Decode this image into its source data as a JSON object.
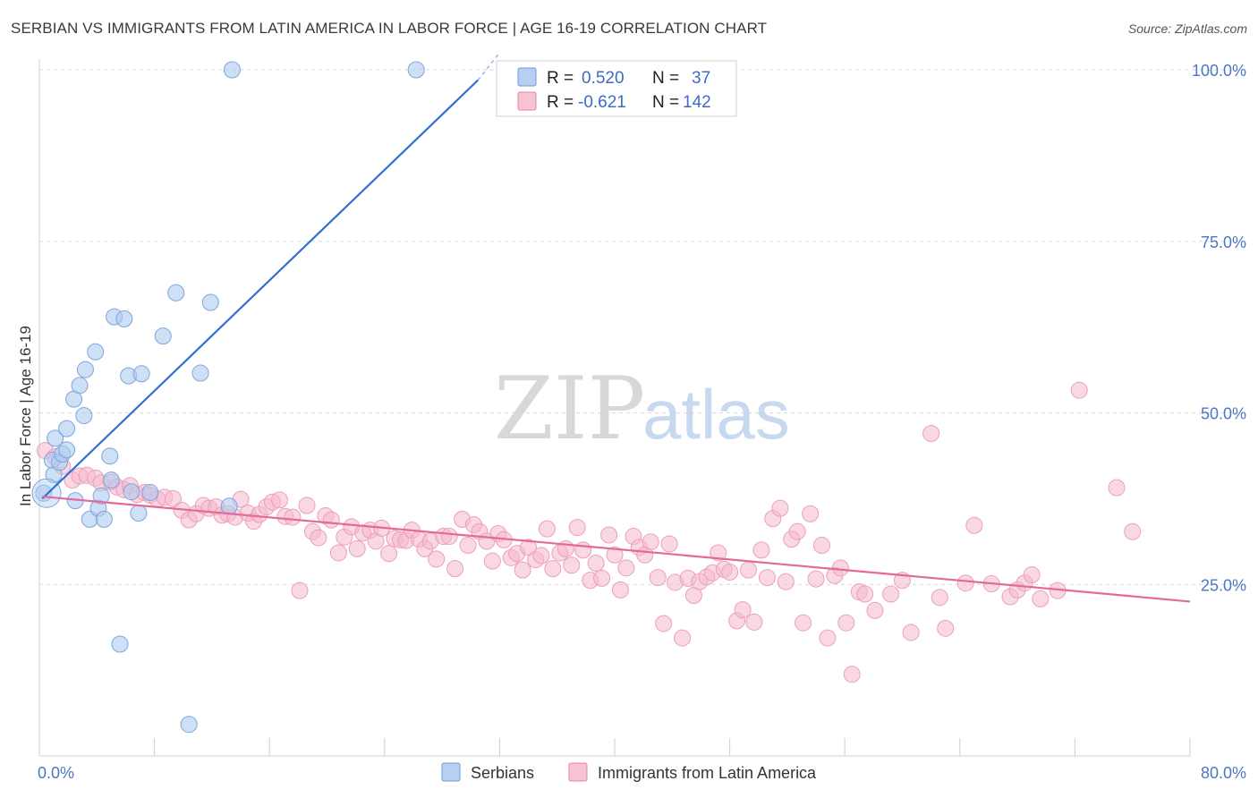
{
  "title": "SERBIAN VS IMMIGRANTS FROM LATIN AMERICA IN LABOR FORCE | AGE 16-19 CORRELATION CHART",
  "source": "Source: ZipAtlas.com",
  "watermark": {
    "zip": "ZIP",
    "atlas": "atlas"
  },
  "colors": {
    "serbians": "#5b8fd6",
    "serbians_fill": "#aecbf0",
    "latin": "#e0608e",
    "latin_fill": "#f5b8cc",
    "tick_text": "#4a78c2",
    "grid": "#d9d9d9"
  },
  "legend": {
    "row1": {
      "r_label": "R = ",
      "r_value": "0.520",
      "n_label": "N = ",
      "n_value": "37"
    },
    "row2": {
      "r_label": "R = ",
      "r_value": "-0.621",
      "n_label": "N = ",
      "n_value": "142"
    }
  },
  "bottom_legend": [
    "Serbians",
    "Immigrants from Latin America"
  ],
  "chart_data": {
    "type": "scatter",
    "title": "SERBIAN VS IMMIGRANTS FROM LATIN AMERICA IN LABOR FORCE | AGE 16-19 CORRELATION CHART",
    "xlabel": "",
    "ylabel": "In Labor Force | Age 16-19",
    "xlim": [
      0,
      80
    ],
    "ylim": [
      0,
      104
    ],
    "x_tick_labels": [
      "0.0%",
      "80.0%"
    ],
    "y_ticks": [
      25,
      50,
      75,
      100
    ],
    "y_tick_labels": [
      "25.0%",
      "50.0%",
      "75.0%",
      "100.0%"
    ],
    "grid": true,
    "legend_position": "top-center",
    "series": [
      {
        "name": "Serbians",
        "R": 0.52,
        "N": 37,
        "trend": {
          "x": [
            0.2,
            30.5
          ],
          "y": [
            37.5,
            98.5
          ],
          "dashed_to": [
            32.0,
            102.5
          ]
        },
        "points": [
          [
            0.3,
            38.3
          ],
          [
            0.9,
            43.1
          ],
          [
            1.0,
            41.0
          ],
          [
            1.1,
            46.3
          ],
          [
            1.4,
            42.8
          ],
          [
            1.6,
            44.0
          ],
          [
            1.9,
            47.7
          ],
          [
            1.9,
            44.6
          ],
          [
            2.4,
            52.0
          ],
          [
            2.5,
            37.2
          ],
          [
            2.8,
            54.0
          ],
          [
            3.1,
            49.6
          ],
          [
            3.2,
            56.3
          ],
          [
            3.5,
            34.5
          ],
          [
            3.9,
            58.9
          ],
          [
            4.1,
            36.1
          ],
          [
            4.3,
            37.9
          ],
          [
            4.5,
            34.5
          ],
          [
            4.9,
            43.7
          ],
          [
            5.0,
            40.2
          ],
          [
            5.2,
            64.0
          ],
          [
            5.6,
            16.3
          ],
          [
            5.9,
            63.7
          ],
          [
            6.2,
            55.4
          ],
          [
            6.4,
            38.5
          ],
          [
            6.9,
            35.4
          ],
          [
            7.1,
            55.7
          ],
          [
            7.7,
            38.4
          ],
          [
            8.6,
            61.2
          ],
          [
            9.5,
            67.5
          ],
          [
            10.4,
            4.6
          ],
          [
            11.2,
            55.8
          ],
          [
            11.9,
            66.1
          ],
          [
            13.2,
            36.4
          ],
          [
            13.4,
            100.0
          ],
          [
            26.2,
            100.0
          ],
          [
            0.5,
            38.3
          ]
        ]
      },
      {
        "name": "Immigrants from Latin America",
        "R": -0.621,
        "N": 142,
        "trend": {
          "x": [
            0.2,
            80.0
          ],
          "y": [
            37.8,
            22.5
          ]
        },
        "points": [
          [
            0.4,
            44.5
          ],
          [
            1.1,
            43.6
          ],
          [
            1.6,
            42.2
          ],
          [
            2.3,
            40.2
          ],
          [
            2.8,
            40.8
          ],
          [
            3.3,
            40.9
          ],
          [
            3.9,
            40.5
          ],
          [
            4.3,
            39.8
          ],
          [
            5.0,
            39.9
          ],
          [
            5.4,
            39.2
          ],
          [
            5.9,
            38.8
          ],
          [
            6.3,
            39.4
          ],
          [
            6.8,
            38.1
          ],
          [
            7.3,
            38.4
          ],
          [
            7.7,
            38.0
          ],
          [
            8.2,
            37.4
          ],
          [
            8.7,
            37.7
          ],
          [
            9.3,
            37.5
          ],
          [
            9.9,
            35.8
          ],
          [
            10.4,
            34.4
          ],
          [
            10.9,
            35.3
          ],
          [
            11.4,
            36.5
          ],
          [
            11.8,
            36.1
          ],
          [
            12.3,
            36.3
          ],
          [
            12.7,
            35.1
          ],
          [
            13.1,
            35.3
          ],
          [
            13.6,
            34.8
          ],
          [
            14.0,
            37.4
          ],
          [
            14.5,
            35.4
          ],
          [
            14.9,
            34.2
          ],
          [
            15.3,
            35.2
          ],
          [
            15.8,
            36.3
          ],
          [
            16.2,
            37.0
          ],
          [
            16.7,
            37.3
          ],
          [
            17.1,
            34.9
          ],
          [
            17.6,
            34.8
          ],
          [
            18.1,
            24.1
          ],
          [
            18.6,
            36.5
          ],
          [
            19.0,
            32.7
          ],
          [
            19.4,
            31.8
          ],
          [
            19.9,
            35.0
          ],
          [
            20.3,
            34.4
          ],
          [
            20.8,
            29.6
          ],
          [
            21.2,
            31.9
          ],
          [
            21.7,
            33.4
          ],
          [
            22.1,
            30.2
          ],
          [
            22.5,
            32.5
          ],
          [
            23.0,
            32.9
          ],
          [
            23.4,
            31.3
          ],
          [
            23.8,
            33.2
          ],
          [
            24.3,
            29.5
          ],
          [
            24.7,
            31.7
          ],
          [
            25.1,
            31.5
          ],
          [
            25.5,
            31.4
          ],
          [
            25.9,
            32.9
          ],
          [
            26.4,
            31.6
          ],
          [
            26.8,
            30.2
          ],
          [
            27.2,
            31.3
          ],
          [
            27.6,
            28.7
          ],
          [
            28.1,
            32.0
          ],
          [
            28.5,
            32.0
          ],
          [
            28.9,
            27.3
          ],
          [
            29.4,
            34.5
          ],
          [
            29.8,
            30.7
          ],
          [
            30.2,
            33.7
          ],
          [
            30.6,
            32.7
          ],
          [
            31.1,
            31.3
          ],
          [
            31.5,
            28.4
          ],
          [
            31.9,
            32.4
          ],
          [
            32.3,
            31.5
          ],
          [
            32.8,
            28.9
          ],
          [
            33.2,
            29.5
          ],
          [
            33.6,
            27.1
          ],
          [
            34.0,
            30.4
          ],
          [
            34.5,
            28.6
          ],
          [
            34.9,
            29.2
          ],
          [
            35.3,
            33.1
          ],
          [
            35.7,
            27.3
          ],
          [
            36.2,
            29.6
          ],
          [
            36.6,
            30.2
          ],
          [
            37.0,
            27.8
          ],
          [
            37.4,
            33.3
          ],
          [
            37.8,
            30.0
          ],
          [
            38.3,
            25.6
          ],
          [
            38.7,
            28.1
          ],
          [
            39.1,
            25.9
          ],
          [
            39.6,
            32.2
          ],
          [
            40.0,
            29.3
          ],
          [
            40.4,
            24.2
          ],
          [
            40.8,
            27.4
          ],
          [
            41.3,
            32.0
          ],
          [
            41.7,
            30.4
          ],
          [
            42.1,
            29.3
          ],
          [
            42.5,
            31.2
          ],
          [
            43.0,
            26.0
          ],
          [
            43.4,
            19.3
          ],
          [
            43.8,
            30.9
          ],
          [
            44.2,
            25.3
          ],
          [
            44.7,
            17.2
          ],
          [
            45.1,
            25.9
          ],
          [
            45.5,
            23.4
          ],
          [
            45.9,
            25.4
          ],
          [
            46.4,
            26.1
          ],
          [
            46.8,
            26.7
          ],
          [
            47.2,
            29.6
          ],
          [
            47.6,
            27.2
          ],
          [
            48.0,
            26.8
          ],
          [
            48.5,
            19.7
          ],
          [
            48.9,
            21.3
          ],
          [
            49.3,
            27.1
          ],
          [
            49.7,
            19.5
          ],
          [
            50.2,
            30.0
          ],
          [
            50.6,
            26.0
          ],
          [
            51.0,
            34.6
          ],
          [
            51.5,
            36.1
          ],
          [
            51.9,
            25.4
          ],
          [
            52.3,
            31.6
          ],
          [
            52.7,
            32.7
          ],
          [
            53.1,
            19.4
          ],
          [
            53.6,
            35.3
          ],
          [
            54.0,
            25.8
          ],
          [
            54.4,
            30.7
          ],
          [
            54.8,
            17.2
          ],
          [
            55.3,
            26.3
          ],
          [
            55.7,
            27.4
          ],
          [
            56.1,
            19.4
          ],
          [
            56.5,
            11.9
          ],
          [
            57.0,
            23.9
          ],
          [
            57.4,
            23.6
          ],
          [
            58.1,
            21.2
          ],
          [
            59.2,
            23.6
          ],
          [
            60.0,
            25.6
          ],
          [
            60.6,
            18.0
          ],
          [
            62.0,
            47.0
          ],
          [
            62.6,
            23.1
          ],
          [
            63.0,
            18.6
          ],
          [
            64.4,
            25.2
          ],
          [
            65.0,
            33.6
          ],
          [
            66.2,
            25.1
          ],
          [
            67.5,
            23.2
          ],
          [
            68.0,
            24.2
          ],
          [
            68.5,
            25.2
          ],
          [
            69.0,
            26.4
          ],
          [
            69.6,
            22.9
          ],
          [
            72.3,
            53.3
          ],
          [
            74.9,
            39.1
          ],
          [
            76.0,
            32.7
          ],
          [
            70.8,
            24.1
          ]
        ]
      }
    ]
  }
}
